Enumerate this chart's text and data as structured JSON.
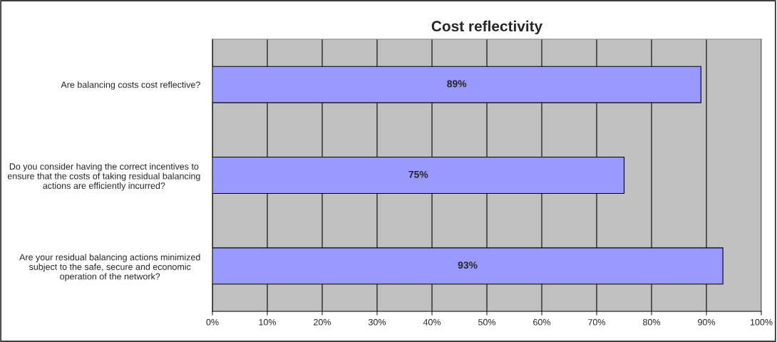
{
  "chart_data": {
    "type": "bar",
    "orientation": "horizontal",
    "title": "Cost reflectivity",
    "categories": [
      "Are balancing costs cost reflective?",
      "Do you consider having the correct incentives to ensure that the costs of taking residual balancing actions are efficiently incurred?",
      "Are your residual balancing actions minimized subject to the safe, secure and economic operation of the network?"
    ],
    "series": [
      {
        "color": "#9999ff",
        "values": [
          89,
          75,
          93
        ],
        "value_labels": [
          "89%",
          "75%",
          "93%"
        ]
      }
    ],
    "xlim": [
      0,
      100
    ],
    "xticks": [
      {
        "value": 0,
        "label": "0%"
      },
      {
        "value": 10,
        "label": "10%"
      },
      {
        "value": 20,
        "label": "20%"
      },
      {
        "value": 30,
        "label": "30%"
      },
      {
        "value": 40,
        "label": "40%"
      },
      {
        "value": 50,
        "label": "50%"
      },
      {
        "value": 60,
        "label": "60%"
      },
      {
        "value": 70,
        "label": "70%"
      },
      {
        "value": 80,
        "label": "80%"
      },
      {
        "value": 90,
        "label": "90%"
      },
      {
        "value": 100,
        "label": "100%"
      }
    ],
    "grid": "x"
  }
}
